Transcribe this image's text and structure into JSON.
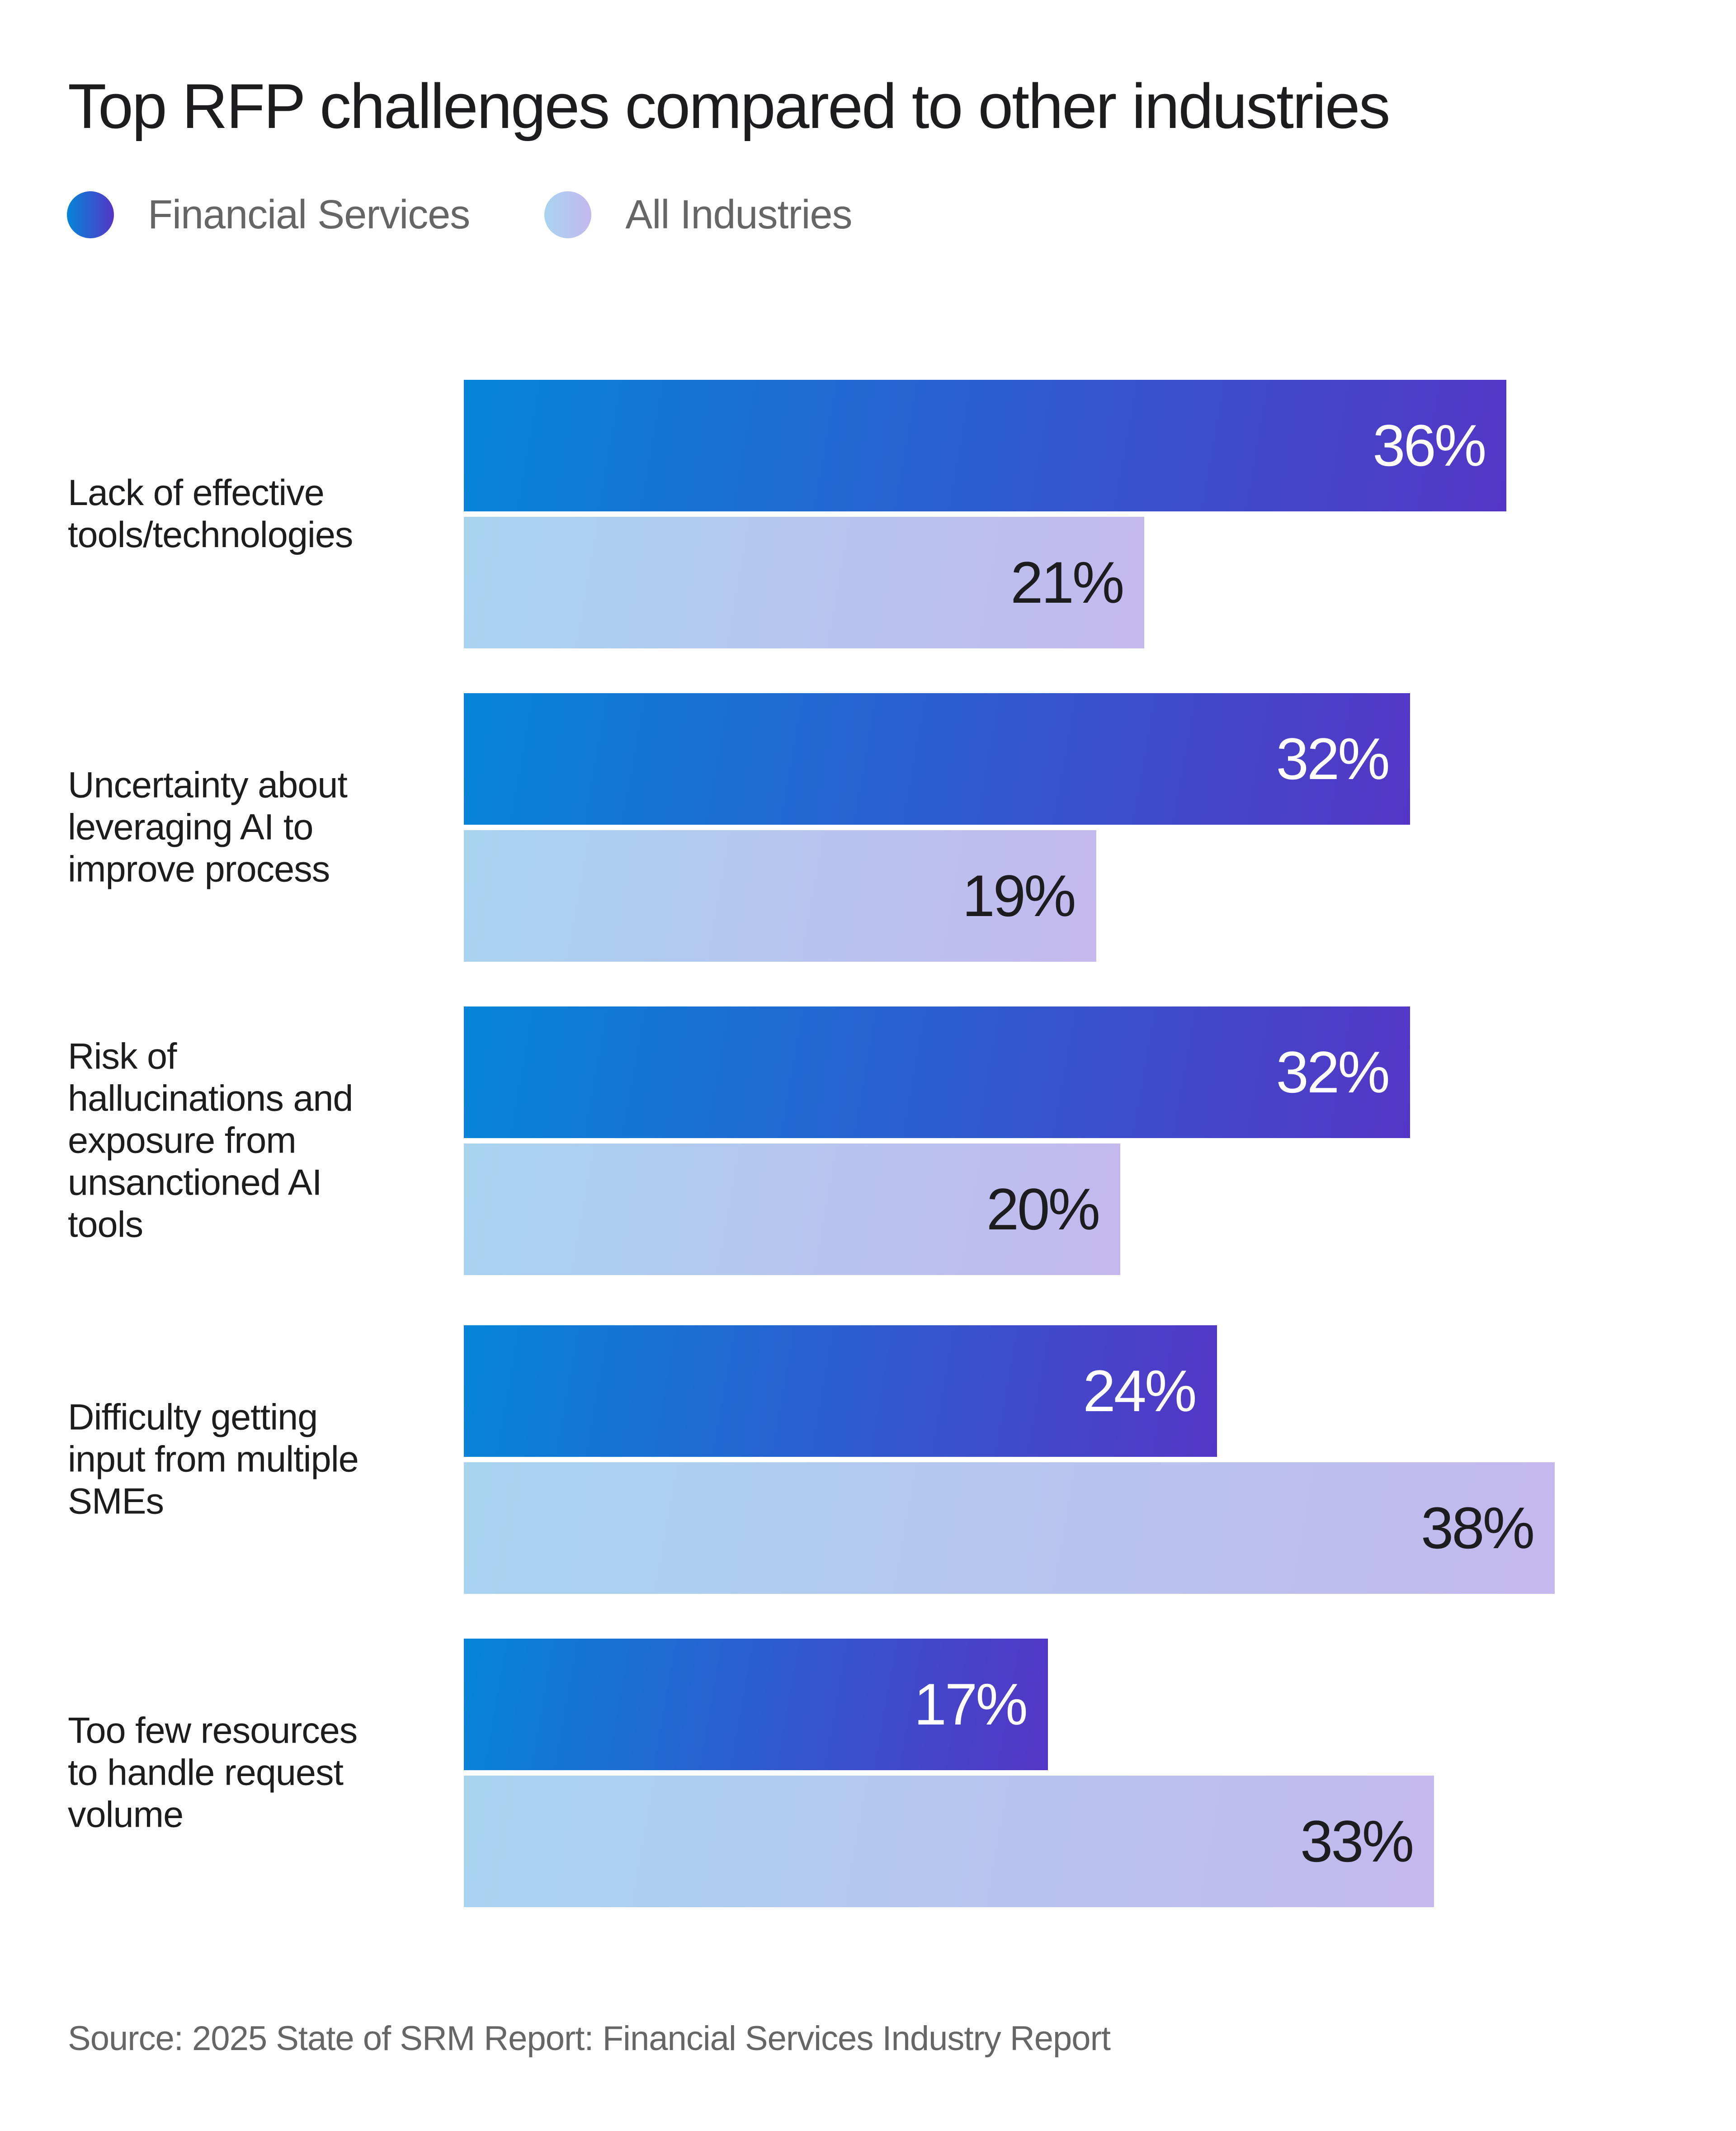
{
  "chart_data": {
    "type": "bar",
    "orientation": "horizontal",
    "title": "Top RFP challenges compared to other industries",
    "categories": [
      "Lack of effective tools/technologies",
      "Uncertainty about leveraging AI to improve process",
      "Risk of hallucinations and exposure from unsanctioned AI tools",
      "Difficulty getting input from multiple SMEs",
      "Too few resources to handle request volume"
    ],
    "category_lines": [
      [
        "Lack of effective",
        "tools/technologies"
      ],
      [
        "Uncertainty about",
        "leveraging AI to",
        "improve process"
      ],
      [
        "Risk of",
        "hallucinations and",
        "exposure from",
        "unsanctioned AI",
        "tools"
      ],
      [
        "Difficulty getting",
        "input from multiple",
        "SMEs"
      ],
      [
        "Too few resources",
        "to handle request",
        "volume"
      ]
    ],
    "series": [
      {
        "name": "Financial Services",
        "values": [
          36,
          32,
          32,
          24,
          17
        ],
        "labels": [
          "36%",
          "32%",
          "32%",
          "24%",
          "17%"
        ],
        "color_start": "#0585d8",
        "color_end": "#5436c6"
      },
      {
        "name": "All Industries",
        "values": [
          21,
          19,
          20,
          38,
          33
        ],
        "labels": [
          "21%",
          "19%",
          "20%",
          "38%",
          "33%"
        ],
        "color_start": "#a8d4f0",
        "color_end": "#c4b8ee"
      }
    ],
    "unit": "%",
    "legend_position": "top-left",
    "grid": false,
    "source": "Source: 2025 State of SRM Report: Financial Services Industry Report"
  }
}
